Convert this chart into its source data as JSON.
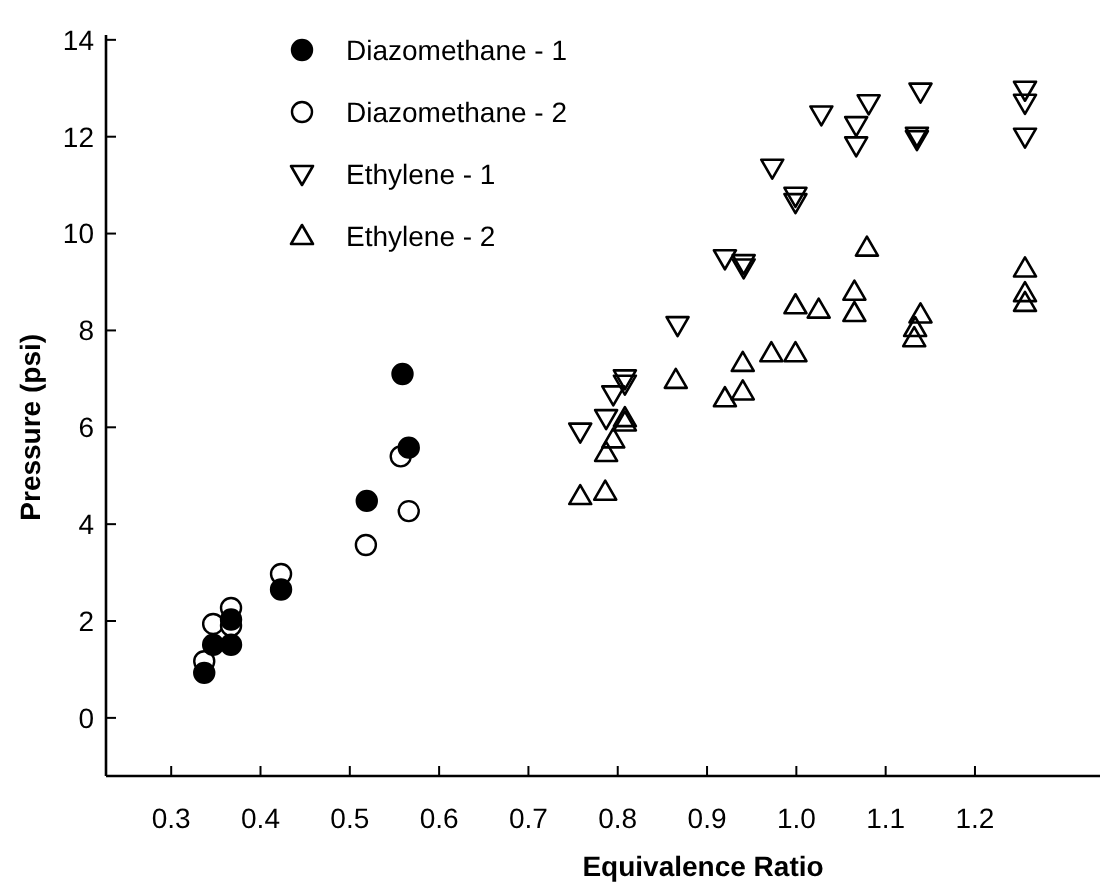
{
  "chart_data": {
    "type": "scatter",
    "xlabel": "Equivalence Ratio",
    "ylabel": "Pressure (psi)",
    "xlim": [
      0.227,
      1.34
    ],
    "ylim": [
      -1.2,
      14.1
    ],
    "xticks": [
      {
        "value": 0.3,
        "label": "0.3"
      },
      {
        "value": 0.4,
        "label": "0.4"
      },
      {
        "value": 0.5,
        "label": "0.5"
      },
      {
        "value": 0.6,
        "label": "0.6"
      },
      {
        "value": 0.7,
        "label": "0.7"
      },
      {
        "value": 0.8,
        "label": "0.8"
      },
      {
        "value": 0.9,
        "label": "0.9"
      },
      {
        "value": 1.0,
        "label": "1.0"
      },
      {
        "value": 1.1,
        "label": "1.1"
      },
      {
        "value": 1.2,
        "label": "1.2"
      }
    ],
    "yticks": [
      0,
      2,
      4,
      6,
      8,
      10,
      12,
      14
    ],
    "grid": false,
    "legend": "top left",
    "series": [
      {
        "name": "Diazomethane - 1",
        "color": "#000000",
        "marker": "circle-filled",
        "x": [
          0.337,
          0.347,
          0.367,
          0.367,
          0.423,
          0.519,
          0.559,
          0.566
        ],
        "values": [
          0.93,
          1.51,
          1.51,
          2.03,
          2.65,
          4.48,
          7.1,
          5.58
        ]
      },
      {
        "name": "Diazomethane - 2",
        "color": "#000000",
        "marker": "circle-open",
        "x": [
          0.337,
          0.347,
          0.367,
          0.367,
          0.423,
          0.518,
          0.557,
          0.566
        ],
        "values": [
          1.17,
          1.94,
          2.27,
          1.9,
          2.97,
          3.57,
          5.4,
          4.27
        ]
      },
      {
        "name": "Ethylene - 1",
        "color": "#000000",
        "marker": "triangle-down-open",
        "x": [
          0.758,
          0.787,
          0.795,
          0.808,
          0.808,
          0.867,
          0.92,
          0.941,
          0.941,
          0.973,
          0.999,
          0.999,
          1.028,
          1.067,
          1.067,
          1.081,
          1.135,
          1.135,
          1.139,
          1.256,
          1.256,
          1.256
        ],
        "values": [
          5.91,
          6.19,
          6.68,
          6.9,
          7.01,
          8.11,
          9.49,
          9.39,
          9.3,
          11.36,
          10.78,
          10.65,
          12.46,
          12.24,
          11.82,
          12.69,
          12.02,
          11.95,
          12.93,
          12.97,
          12.7,
          12.0
        ]
      },
      {
        "name": "Ethylene - 2",
        "color": "#000000",
        "marker": "triangle-open",
        "x": [
          0.758,
          0.786,
          0.787,
          0.795,
          0.808,
          0.808,
          0.865,
          0.92,
          0.94,
          0.94,
          0.972,
          0.999,
          0.999,
          1.025,
          1.065,
          1.065,
          1.079,
          1.132,
          1.133,
          1.139,
          1.256,
          1.256,
          1.256
        ],
        "values": [
          4.58,
          4.67,
          5.47,
          5.75,
          6.19,
          6.1,
          6.98,
          6.6,
          6.74,
          7.33,
          7.53,
          7.53,
          8.52,
          8.43,
          8.36,
          8.8,
          9.71,
          7.84,
          8.05,
          8.33,
          9.28,
          8.77,
          8.57
        ]
      }
    ]
  }
}
